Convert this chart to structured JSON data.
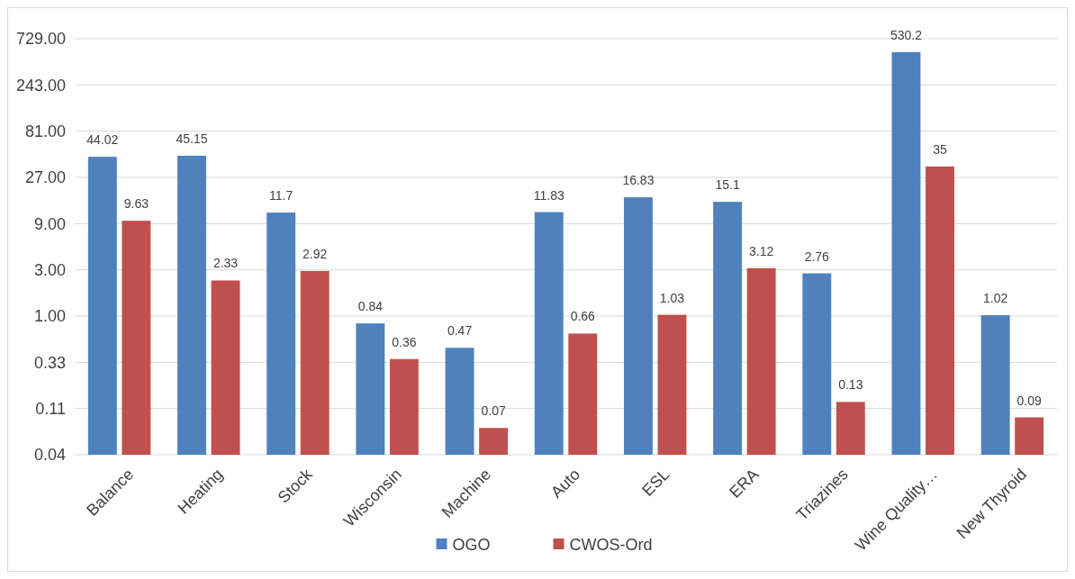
{
  "chart_data": {
    "type": "bar",
    "categories": [
      "Balance",
      "Heating",
      "Stock",
      "Wisconsin",
      "Machine",
      "Auto",
      "ESL",
      "ERA",
      "Triazines",
      "Wine Quality…",
      "New Thyroid"
    ],
    "series": [
      {
        "name": "OGO",
        "color": "#4f81bd",
        "values": [
          44.02,
          45.15,
          11.7,
          0.84,
          0.47,
          11.83,
          16.83,
          15.1,
          2.76,
          530.2,
          1.02
        ]
      },
      {
        "name": "CWOS-Ord",
        "color": "#c0504d",
        "values": [
          9.63,
          2.33,
          2.92,
          0.36,
          0.07,
          0.66,
          1.03,
          3.12,
          0.13,
          35,
          0.09
        ]
      }
    ],
    "log": true,
    "ylim": [
      0.037037,
      729
    ],
    "yticks": [
      {
        "value": 0.037037,
        "label": "0.04"
      },
      {
        "value": 0.111111,
        "label": "0.11"
      },
      {
        "value": 0.333333,
        "label": "0.33"
      },
      {
        "value": 1,
        "label": "1.00"
      },
      {
        "value": 3,
        "label": "3.00"
      },
      {
        "value": 9,
        "label": "9.00"
      },
      {
        "value": 27,
        "label": "27.00"
      },
      {
        "value": 81,
        "label": "81.00"
      },
      {
        "value": 243,
        "label": "243.00"
      },
      {
        "value": 729,
        "label": "729.00"
      }
    ],
    "grid": "y",
    "data_labels": true,
    "legend": "bottom"
  }
}
